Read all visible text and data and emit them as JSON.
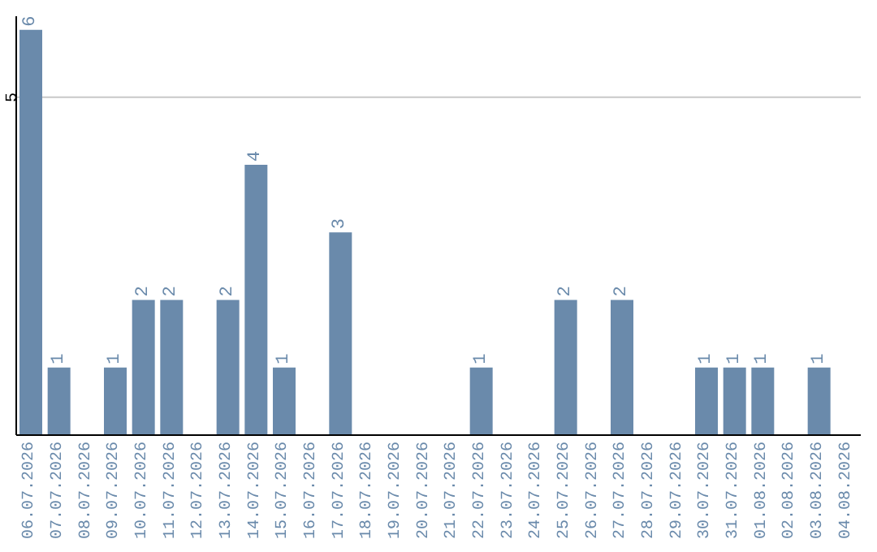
{
  "chart_data": {
    "type": "bar",
    "categories": [
      "06.07.2026",
      "07.07.2026",
      "08.07.2026",
      "09.07.2026",
      "10.07.2026",
      "11.07.2026",
      "12.07.2026",
      "13.07.2026",
      "14.07.2026",
      "15.07.2026",
      "16.07.2026",
      "17.07.2026",
      "18.07.2026",
      "19.07.2026",
      "20.07.2026",
      "21.07.2026",
      "22.07.2026",
      "23.07.2026",
      "24.07.2026",
      "25.07.2026",
      "26.07.2026",
      "27.07.2026",
      "28.07.2026",
      "29.07.2026",
      "30.07.2026",
      "31.07.2026",
      "01.08.2026",
      "02.08.2026",
      "03.08.2026",
      "04.08.2026"
    ],
    "values": [
      6,
      1,
      0,
      1,
      2,
      2,
      0,
      2,
      4,
      1,
      0,
      3,
      0,
      0,
      0,
      0,
      1,
      0,
      0,
      2,
      0,
      2,
      0,
      0,
      1,
      1,
      1,
      0,
      1,
      0
    ],
    "value_labels": [
      "6",
      "1",
      null,
      "1",
      "2",
      "2",
      null,
      "2",
      "4",
      "1",
      null,
      "3",
      null,
      null,
      null,
      null,
      "1",
      null,
      null,
      "2",
      null,
      "2",
      null,
      null,
      "1",
      "1",
      "1",
      null,
      "1",
      null
    ],
    "color": "#6a8aab",
    "ylim": [
      0,
      6.2
    ],
    "yticks": [
      5
    ],
    "grid": "y",
    "legend": false
  }
}
